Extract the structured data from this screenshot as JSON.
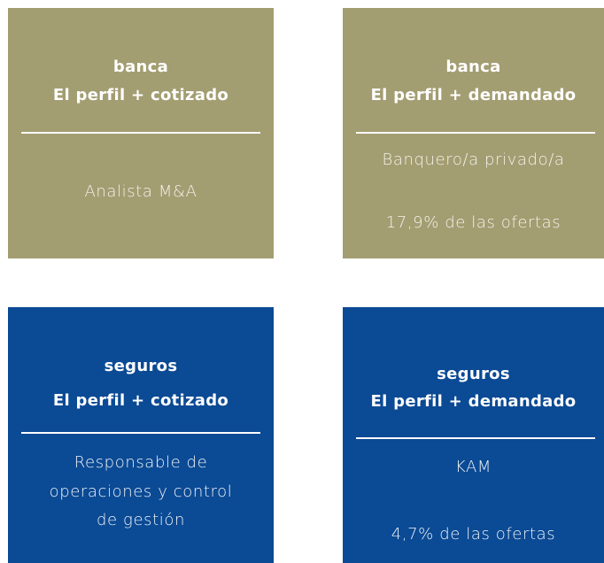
{
  "cards": [
    {
      "sector": "banca",
      "heading": "El perfil + cotizado",
      "lines": [
        "Analista M&A"
      ]
    },
    {
      "sector": "banca",
      "heading": "El perfil + demandado",
      "lines": [
        "Banquero/a privado/a",
        "17,9% de las ofertas"
      ]
    },
    {
      "sector": "seguros",
      "heading": "El perfil + cotizado",
      "lines": [
        "Responsable de",
        "operaciones y control",
        "de gestión"
      ]
    },
    {
      "sector": "seguros",
      "heading": "El perfil + demandado",
      "lines": [
        "KAM",
        "4,7% de las ofertas"
      ]
    }
  ]
}
